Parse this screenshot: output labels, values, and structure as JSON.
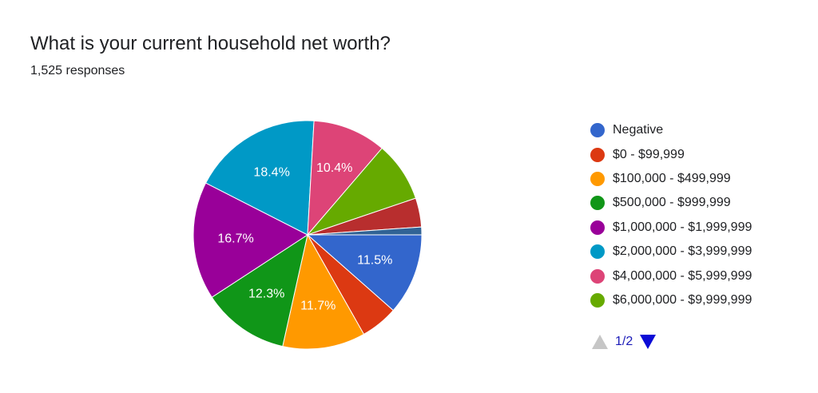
{
  "header": {
    "title": "What is your current household net worth?",
    "responses": "1,525 responses"
  },
  "pager": {
    "text": "1/2",
    "up_icon": "triangle-up-icon",
    "down_icon": "triangle-down-icon"
  },
  "chart_data": {
    "type": "pie",
    "title": "What is your current household net worth?",
    "start": "3 o'clock, clockwise",
    "slices": [
      {
        "label": "Negative",
        "value": 11.5,
        "color": "#3366cc",
        "data_label": "11.5%"
      },
      {
        "label": "$0 - $99,999",
        "value": 5.3,
        "color": "#dc3912",
        "data_label": ""
      },
      {
        "label": "$100,000 - $499,999",
        "value": 11.7,
        "color": "#ff9900",
        "data_label": "11.7%"
      },
      {
        "label": "$500,000 - $999,999",
        "value": 12.3,
        "color": "#109618",
        "data_label": "12.3%"
      },
      {
        "label": "$1,000,000 - $1,999,999",
        "value": 16.7,
        "color": "#990099",
        "data_label": "16.7%"
      },
      {
        "label": "$2,000,000 - $3,999,999",
        "value": 18.4,
        "color": "#0099c6",
        "data_label": "18.4%"
      },
      {
        "label": "$4,000,000 - $5,999,999",
        "value": 10.4,
        "color": "#dd4477",
        "data_label": "10.4%"
      },
      {
        "label": "$6,000,000 - $9,999,999",
        "value": 8.5,
        "color": "#66aa00",
        "data_label": ""
      },
      {
        "label": "",
        "value": 4.1,
        "color": "#b82e2e",
        "data_label": ""
      },
      {
        "label": "",
        "value": 1.1,
        "color": "#316395",
        "data_label": ""
      }
    ],
    "legend": {
      "position": "right",
      "items": [
        {
          "label": "Negative",
          "color": "#3366cc"
        },
        {
          "label": "$0 - $99,999",
          "color": "#dc3912"
        },
        {
          "label": "$100,000 - $499,999",
          "color": "#ff9900"
        },
        {
          "label": "$500,000 - $999,999",
          "color": "#109618"
        },
        {
          "label": "$1,000,000 - $1,999,999",
          "color": "#990099"
        },
        {
          "label": "$2,000,000 - $3,999,999",
          "color": "#0099c6"
        },
        {
          "label": "$4,000,000 - $5,999,999",
          "color": "#dd4477"
        },
        {
          "label": "$6,000,000 - $9,999,999",
          "color": "#66aa00"
        }
      ]
    }
  }
}
